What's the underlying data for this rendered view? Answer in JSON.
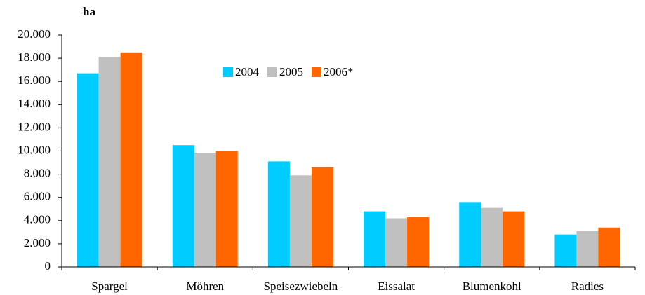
{
  "chart_data": {
    "type": "bar",
    "axis_label": "ha",
    "categories": [
      "Spargel",
      "Möhren",
      "Speisezwiebeln",
      "Eissalat",
      "Blumenkohl",
      "Radies"
    ],
    "series": [
      {
        "name": "2004",
        "color": "#00ccff",
        "values": [
          16700,
          10500,
          9100,
          4800,
          5600,
          2800
        ]
      },
      {
        "name": "2005",
        "color": "#c0c0c0",
        "values": [
          18100,
          9850,
          7900,
          4200,
          5100,
          3100
        ]
      },
      {
        "name": "2006*",
        "color": "#ff6600",
        "values": [
          18500,
          10000,
          8600,
          4300,
          4800,
          3400
        ]
      }
    ],
    "ylim": [
      0,
      20000
    ],
    "yticks": [
      0,
      {
        "value": 2000,
        "label": "2.000"
      },
      {
        "value": 4000,
        "label": "4.000"
      },
      {
        "value": 6000,
        "label": "6.000"
      },
      {
        "value": 8000,
        "label": "8.000"
      },
      {
        "value": 10000,
        "label": "10.000"
      },
      {
        "value": 12000,
        "label": "12.000"
      },
      {
        "value": 14000,
        "label": "14.000"
      },
      {
        "value": 16000,
        "label": "16.000"
      },
      {
        "value": 18000,
        "label": "18.000"
      },
      {
        "value": 20000,
        "label": "20.000"
      }
    ],
    "grid": false,
    "legend": "top"
  }
}
